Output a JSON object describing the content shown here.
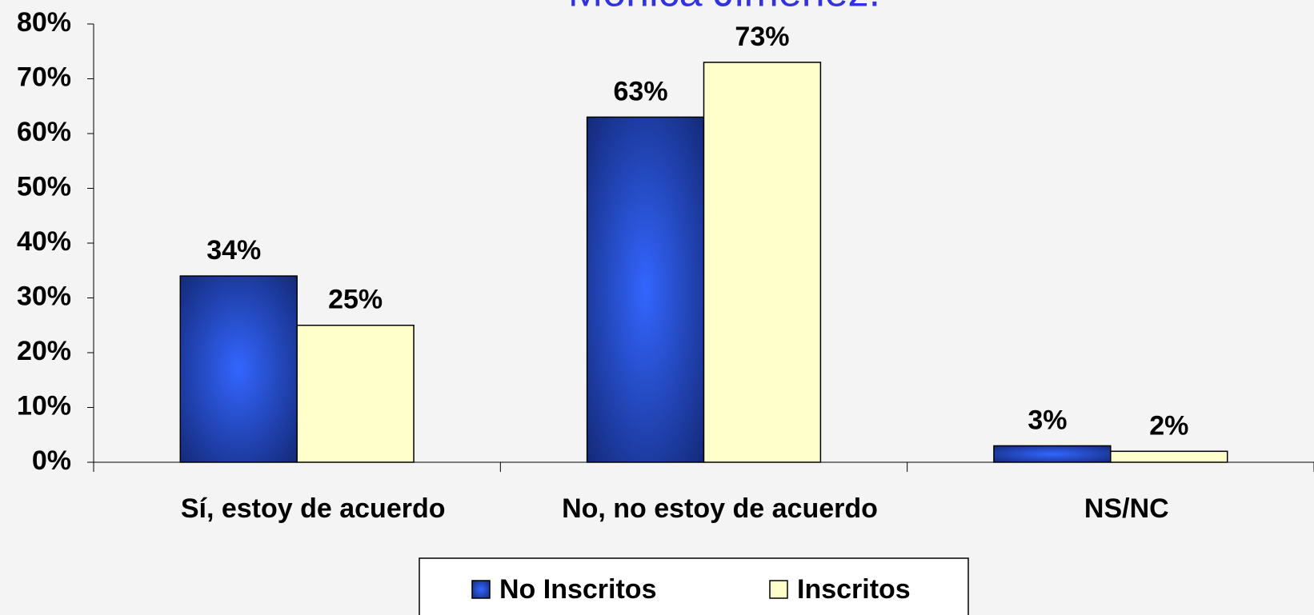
{
  "chart_data": {
    "type": "bar",
    "title": "Mónica Jiménez.",
    "categories": [
      "Sí, estoy de acuerdo",
      "No, no estoy de acuerdo",
      "NS/NC"
    ],
    "series": [
      {
        "name": "No Inscritos",
        "color": "#2f5cf0",
        "values": [
          34,
          63,
          3
        ],
        "value_labels": [
          "34%",
          "63%",
          "3%"
        ]
      },
      {
        "name": "Inscritos",
        "color": "#ffffcc",
        "values": [
          25,
          73,
          2
        ],
        "value_labels": [
          "25%",
          "73%",
          "2%"
        ]
      }
    ],
    "ylim": [
      0,
      80
    ],
    "yticks": [
      {
        "value": 0,
        "label": "0%"
      },
      {
        "value": 10,
        "label": "10%"
      },
      {
        "value": 20,
        "label": "20%"
      },
      {
        "value": 30,
        "label": "30%"
      },
      {
        "value": 40,
        "label": "40%"
      },
      {
        "value": 50,
        "label": "50%"
      },
      {
        "value": 60,
        "label": "60%"
      },
      {
        "value": 70,
        "label": "70%"
      },
      {
        "value": 80,
        "label": "80%"
      }
    ]
  }
}
